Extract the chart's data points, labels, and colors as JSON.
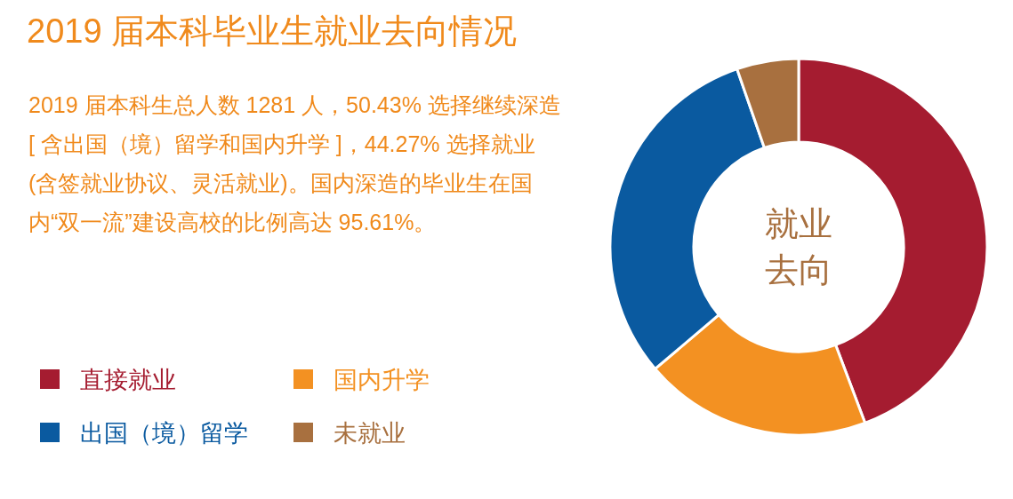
{
  "chart_data": {
    "type": "donut",
    "title": "2019 届本科毕业生就业去向情况",
    "annotations": [
      "2019 届本科生总人数 1281 人，50.43% 选择继续深造 [ 含出国（境）留学和国内升学 ]，44.27% 选择就业 (含签就业协议、灵活就业)。国内深造的毕业生在国内“双一流”建设高校的比例高达 95.61%。",
      "就业去向"
    ],
    "categories": [
      "直接就业",
      "国内升学",
      "出国（境）留学",
      "未就业"
    ],
    "values": [
      44.27,
      19.5,
      30.93,
      5.3
    ],
    "colors": [
      "#a51c30",
      "#f39122",
      "#0a5aa0",
      "#a8703f"
    ],
    "legend": "bottom left"
  }
}
